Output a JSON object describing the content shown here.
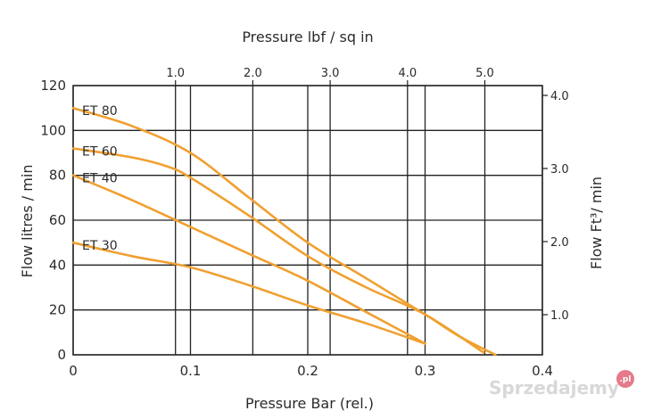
{
  "chart_data": {
    "type": "line",
    "title": "",
    "xlabel": "Pressure Bar (rel.)",
    "ylabel": "Flow litres / min",
    "x_top_label": "Pressure lbf / sq in",
    "y_right_label": "Flow  Ft³/ min",
    "xlim": [
      0,
      0.4
    ],
    "ylim": [
      0,
      120
    ],
    "x_ticks": [
      "0",
      "0.1",
      "0.2",
      "0.3",
      "0.4"
    ],
    "y_ticks": [
      "0",
      "20",
      "40",
      "60",
      "80",
      "100",
      "120"
    ],
    "x_top_ticks": [
      {
        "label": "1.0",
        "value": 1.0
      },
      {
        "label": "2.0",
        "value": 2.0
      },
      {
        "label": "3.0",
        "value": 3.0
      },
      {
        "label": "4.0",
        "value": 4.0
      },
      {
        "label": "5.0",
        "value": 5.0
      }
    ],
    "y_right_ticks": [
      {
        "label": "1.0",
        "value": 1.0
      },
      {
        "label": "2.0",
        "value": 2.0
      },
      {
        "label": "3.0",
        "value": 3.0
      },
      {
        "label": "4.0",
        "value": 4.0
      }
    ],
    "grid": true,
    "line_color": "#f0a030",
    "series": [
      {
        "name": "ET 80",
        "x": [
          0,
          0.05,
          0.1,
          0.15,
          0.2,
          0.25,
          0.3,
          0.33,
          0.36
        ],
        "y": [
          110,
          102,
          90,
          70,
          50,
          34,
          18,
          8,
          0
        ]
      },
      {
        "name": "ET 60",
        "x": [
          0,
          0.05,
          0.08,
          0.1,
          0.15,
          0.2,
          0.25,
          0.3,
          0.35
        ],
        "y": [
          92,
          88,
          84,
          79,
          62,
          44,
          30,
          18,
          1
        ]
      },
      {
        "name": "ET 40",
        "x": [
          0,
          0.05,
          0.1,
          0.15,
          0.2,
          0.25,
          0.3
        ],
        "y": [
          80,
          69,
          57,
          45,
          33,
          19,
          5
        ]
      },
      {
        "name": "ET 30",
        "x": [
          0,
          0.05,
          0.1,
          0.15,
          0.2,
          0.25,
          0.3
        ],
        "y": [
          50,
          44,
          39,
          31,
          22,
          14,
          5
        ]
      }
    ]
  },
  "watermark": {
    "text": "Sprzedajemy",
    "badge": ".pl"
  }
}
